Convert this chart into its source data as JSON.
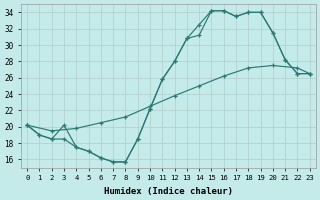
{
  "xlabel": "Humidex (Indice chaleur)",
  "background_color": "#c5eaea",
  "grid_color": "#b0cccc",
  "line_color": "#2a7a72",
  "xlim": [
    -0.5,
    23.5
  ],
  "ylim": [
    15,
    35
  ],
  "xticks": [
    0,
    1,
    2,
    3,
    4,
    5,
    6,
    7,
    8,
    9,
    10,
    11,
    12,
    13,
    14,
    15,
    16,
    17,
    18,
    19,
    20,
    21,
    22,
    23
  ],
  "yticks": [
    16,
    18,
    20,
    22,
    24,
    26,
    28,
    30,
    32,
    34
  ],
  "curve_zigzag_x": [
    0,
    1,
    2,
    3,
    4,
    5,
    6,
    7,
    8,
    9,
    10,
    11,
    12,
    13,
    14,
    15,
    16,
    17,
    18,
    19,
    20,
    21,
    22,
    23
  ],
  "curve_zigzag_y": [
    20.2,
    19.0,
    18.5,
    18.5,
    17.5,
    17.0,
    16.2,
    15.7,
    15.7,
    18.5,
    22.2,
    25.8,
    28.0,
    30.8,
    31.2,
    34.2,
    34.2,
    33.5,
    34.0,
    34.0,
    31.5,
    28.2,
    26.5,
    26.5
  ],
  "curve_zigzag2_x": [
    0,
    1,
    2,
    3,
    4,
    5,
    6,
    7,
    8,
    9,
    10,
    11,
    12,
    13,
    14,
    15,
    16,
    17,
    18,
    19,
    20,
    21,
    22,
    23
  ],
  "curve_zigzag2_y": [
    20.2,
    19.0,
    18.5,
    20.2,
    17.5,
    17.0,
    16.2,
    15.7,
    15.7,
    18.5,
    22.2,
    25.8,
    28.0,
    30.8,
    32.5,
    34.2,
    34.2,
    33.5,
    34.0,
    34.0,
    31.5,
    28.2,
    26.5,
    26.5
  ],
  "curve_linear_x": [
    0,
    2,
    4,
    6,
    8,
    10,
    12,
    14,
    16,
    18,
    20,
    22,
    23
  ],
  "curve_linear_y": [
    20.2,
    19.5,
    19.8,
    20.5,
    21.2,
    22.5,
    23.8,
    25.0,
    26.2,
    27.2,
    27.5,
    27.2,
    26.5
  ]
}
